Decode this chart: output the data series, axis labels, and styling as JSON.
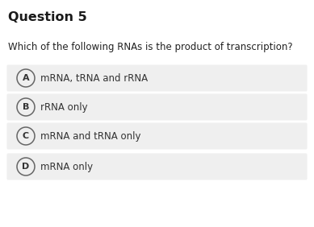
{
  "title": "Question 5",
  "question": "Which of the following RNAs is the product of transcription?",
  "options": [
    {
      "label": "A",
      "text": "mRNA, tRNA and rRNA"
    },
    {
      "label": "B",
      "text": "rRNA only"
    },
    {
      "label": "C",
      "text": "mRNA and tRNA only"
    },
    {
      "label": "D",
      "text": "mRNA only"
    }
  ],
  "bg_color": "#ffffff",
  "option_bg_color": "#efefef",
  "title_color": "#1a1a1a",
  "question_color": "#222222",
  "option_text_color": "#333333",
  "circle_edge_color": "#666666",
  "title_fontsize": 11.5,
  "question_fontsize": 8.5,
  "option_fontsize": 8.5,
  "label_fontsize": 8.0,
  "fig_width": 3.89,
  "fig_height": 2.82,
  "dpi": 100
}
